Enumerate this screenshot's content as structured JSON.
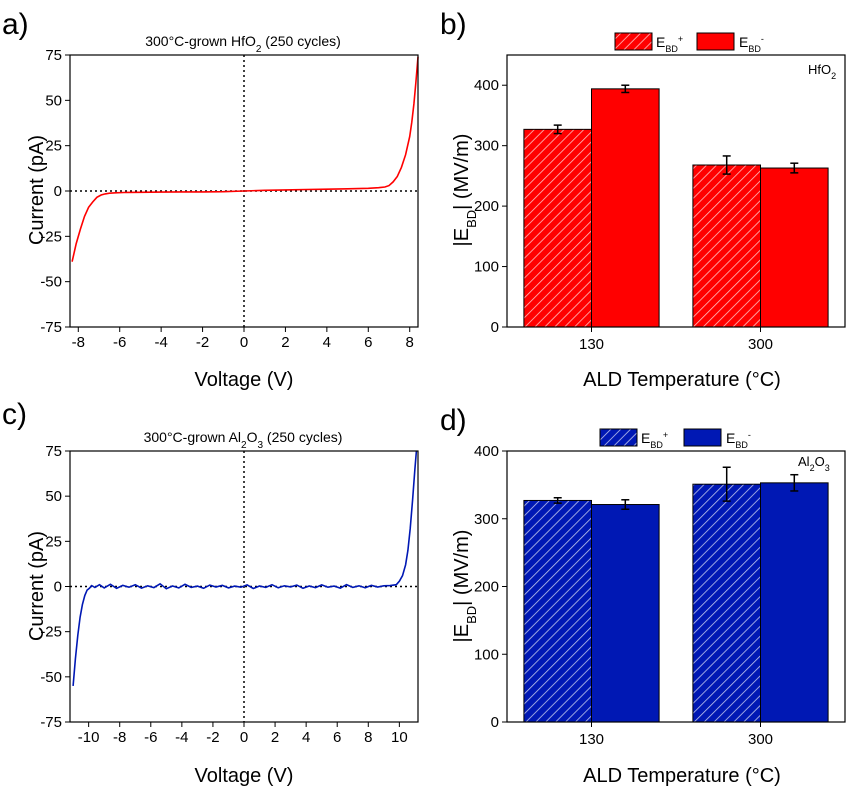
{
  "panels": [
    {
      "letter": "a)",
      "title": "300°C-grown HfO",
      "title_sub": "2",
      "title_tail": " (250 cycles)"
    },
    {
      "letter": "b)",
      "material": "HfO",
      "material_sub": "2"
    },
    {
      "letter": "c)",
      "title": "300°C-grown Al",
      "title_sub": "2",
      "title_mid": "O",
      "title_sub2": "3",
      "title_tail": " (250 cycles)"
    },
    {
      "letter": "d)",
      "material": "Al",
      "material_sub": "2",
      "material_mid": "O",
      "material_sub2": "3"
    }
  ],
  "colors": {
    "hfo2": "#ff0000",
    "al2o3": "#0018b4"
  },
  "legend": {
    "e": "E",
    "bd": "BD",
    "plus": "+",
    "minus": "-"
  },
  "labels": {
    "current": "Current (pA)",
    "voltage": "Voltage (V)",
    "ebd_open": "|E",
    "ebd_sub": "BD",
    "ebd_close": "| (MV/m)",
    "ald_temp": "ALD Temperature (°C)"
  },
  "chart_data": [
    {
      "id": "a",
      "type": "line",
      "xlabel": "Voltage (V)",
      "ylabel": "Current (pA)",
      "xlim": [
        -8.4,
        8.4
      ],
      "ylim": [
        -75,
        75
      ],
      "xticks": [
        -8,
        -6,
        -4,
        -2,
        0,
        2,
        4,
        6,
        8
      ],
      "yticks": [
        -75,
        -50,
        -25,
        0,
        25,
        50,
        75
      ],
      "color": "#ff0000",
      "x": [
        -8.3,
        -8.1,
        -7.9,
        -7.7,
        -7.5,
        -7.3,
        -7.1,
        -6.9,
        -6.7,
        -6.5,
        -6.2,
        -5.8,
        -5,
        -4,
        -3,
        -2,
        -1,
        0,
        1,
        2,
        3,
        4,
        5,
        5.5,
        6,
        6.5,
        6.8,
        7,
        7.2,
        7.4,
        7.6,
        7.8,
        8,
        8.1,
        8.2,
        8.3,
        8.4
      ],
      "y": [
        -39,
        -29,
        -21,
        -14,
        -9,
        -6,
        -3.5,
        -2.2,
        -1.6,
        -1.2,
        -1,
        -0.8,
        -0.7,
        -0.6,
        -0.5,
        -0.5,
        -0.4,
        0,
        0.4,
        0.6,
        0.8,
        1,
        1.2,
        1.3,
        1.5,
        1.8,
        2.2,
        3,
        5,
        8,
        13,
        20,
        30,
        38,
        48,
        60,
        74
      ]
    },
    {
      "id": "b",
      "type": "bar",
      "xlabel": "ALD Temperature (°C)",
      "ylabel": "|EBD| (MV/m)",
      "categories": [
        "130",
        "300"
      ],
      "ylim": [
        0,
        450
      ],
      "yticks": [
        0,
        100,
        200,
        300,
        400
      ],
      "legend_position": "top-center",
      "series": [
        {
          "name": "EBD+",
          "pattern": "hatched",
          "values": [
            327,
            268
          ],
          "errors": [
            7,
            15
          ]
        },
        {
          "name": "EBD-",
          "pattern": "solid",
          "values": [
            394,
            263
          ],
          "errors": [
            6,
            8
          ]
        }
      ]
    },
    {
      "id": "c",
      "type": "line",
      "xlabel": "Voltage (V)",
      "ylabel": "Current (pA)",
      "xlim": [
        -11.2,
        11.2
      ],
      "ylim": [
        -75,
        75
      ],
      "xticks": [
        -10,
        -8,
        -6,
        -4,
        -2,
        0,
        2,
        4,
        6,
        8,
        10
      ],
      "yticks": [
        -75,
        -50,
        -25,
        0,
        25,
        50,
        75
      ],
      "color": "#0018b4",
      "x": [
        -11,
        -10.85,
        -10.7,
        -10.55,
        -10.4,
        -10.25,
        -10.1,
        -9.95,
        -9.8,
        -9.6,
        -9.3,
        -9,
        -8.6,
        -8.2,
        -7.8,
        -7.4,
        -7,
        -6.6,
        -6.2,
        -5.8,
        -5.4,
        -5,
        -4.6,
        -4.2,
        -3.8,
        -3.4,
        -3,
        -2.6,
        -2.2,
        -1.8,
        -1.4,
        -1,
        -0.6,
        -0.2,
        0.2,
        0.6,
        1,
        1.4,
        1.8,
        2.2,
        2.6,
        3,
        3.4,
        3.8,
        4.2,
        4.6,
        5,
        5.4,
        5.8,
        6.2,
        6.6,
        7,
        7.4,
        7.8,
        8.2,
        8.6,
        9,
        9.4,
        9.8,
        10,
        10.2,
        10.4,
        10.55,
        10.7,
        10.85,
        11,
        11.1
      ],
      "y": [
        -55,
        -40,
        -27,
        -17,
        -10,
        -5,
        -2,
        -1,
        0.5,
        -0.5,
        1,
        -0.8,
        1.2,
        -1,
        0.6,
        -0.4,
        1,
        -0.9,
        0.4,
        -0.6,
        1.5,
        -1.2,
        0.3,
        -0.8,
        1.2,
        -0.5,
        0.2,
        -1,
        0.8,
        -0.3,
        0.6,
        -0.8,
        0.2,
        -0.4,
        0.9,
        -1.1,
        0.3,
        -0.5,
        1,
        -0.7,
        0.4,
        -0.2,
        0.8,
        -1,
        0.3,
        -0.6,
        0.9,
        -0.4,
        0.2,
        -0.9,
        1,
        -0.5,
        0.4,
        -0.7,
        0.6,
        -0.3,
        0.4,
        0.5,
        1,
        3,
        6,
        12,
        20,
        32,
        48,
        65,
        75
      ]
    },
    {
      "id": "d",
      "type": "bar",
      "xlabel": "ALD Temperature (°C)",
      "ylabel": "|EBD| (MV/m)",
      "categories": [
        "130",
        "300"
      ],
      "ylim": [
        0,
        400
      ],
      "yticks": [
        0,
        100,
        200,
        300,
        400
      ],
      "legend_position": "top-center",
      "series": [
        {
          "name": "EBD+",
          "pattern": "hatched",
          "values": [
            327,
            351
          ],
          "errors": [
            4,
            25
          ]
        },
        {
          "name": "EBD-",
          "pattern": "solid",
          "values": [
            321,
            353
          ],
          "errors": [
            7,
            12
          ]
        }
      ]
    }
  ]
}
